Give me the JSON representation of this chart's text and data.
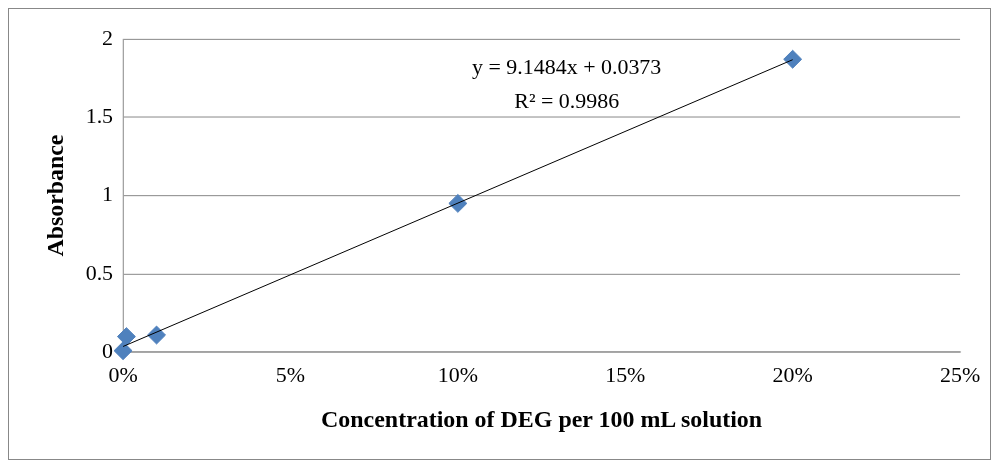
{
  "chart_data": {
    "type": "scatter",
    "xlabel": "Concentration of DEG per 100 mL solution",
    "ylabel": "Absorbance",
    "xlim": [
      0,
      25
    ],
    "xticks": [
      {
        "value": 0,
        "label": "0%"
      },
      {
        "value": 5,
        "label": "5%"
      },
      {
        "value": 10,
        "label": "10%"
      },
      {
        "value": 15,
        "label": "15%"
      },
      {
        "value": 20,
        "label": "20%"
      },
      {
        "value": 25,
        "label": "25%"
      }
    ],
    "ylim": [
      0,
      2
    ],
    "yticks": [
      0,
      0.5,
      1,
      1.5,
      2
    ],
    "grid": "y",
    "legend": false,
    "series": [
      {
        "marker": "diamond",
        "color": "#4f81bd",
        "x": [
          0,
          0.1,
          1,
          10,
          20
        ],
        "values": [
          0.01,
          0.1,
          0.11,
          0.95,
          1.87
        ]
      },
      {
        "type": "line",
        "marker": "none",
        "color": "#000000",
        "x": [
          0,
          20
        ],
        "values": [
          0.037,
          1.867
        ]
      }
    ],
    "annotations": [
      "y = 9.1484x + 0.0373",
      "R² = 0.9986"
    ]
  }
}
